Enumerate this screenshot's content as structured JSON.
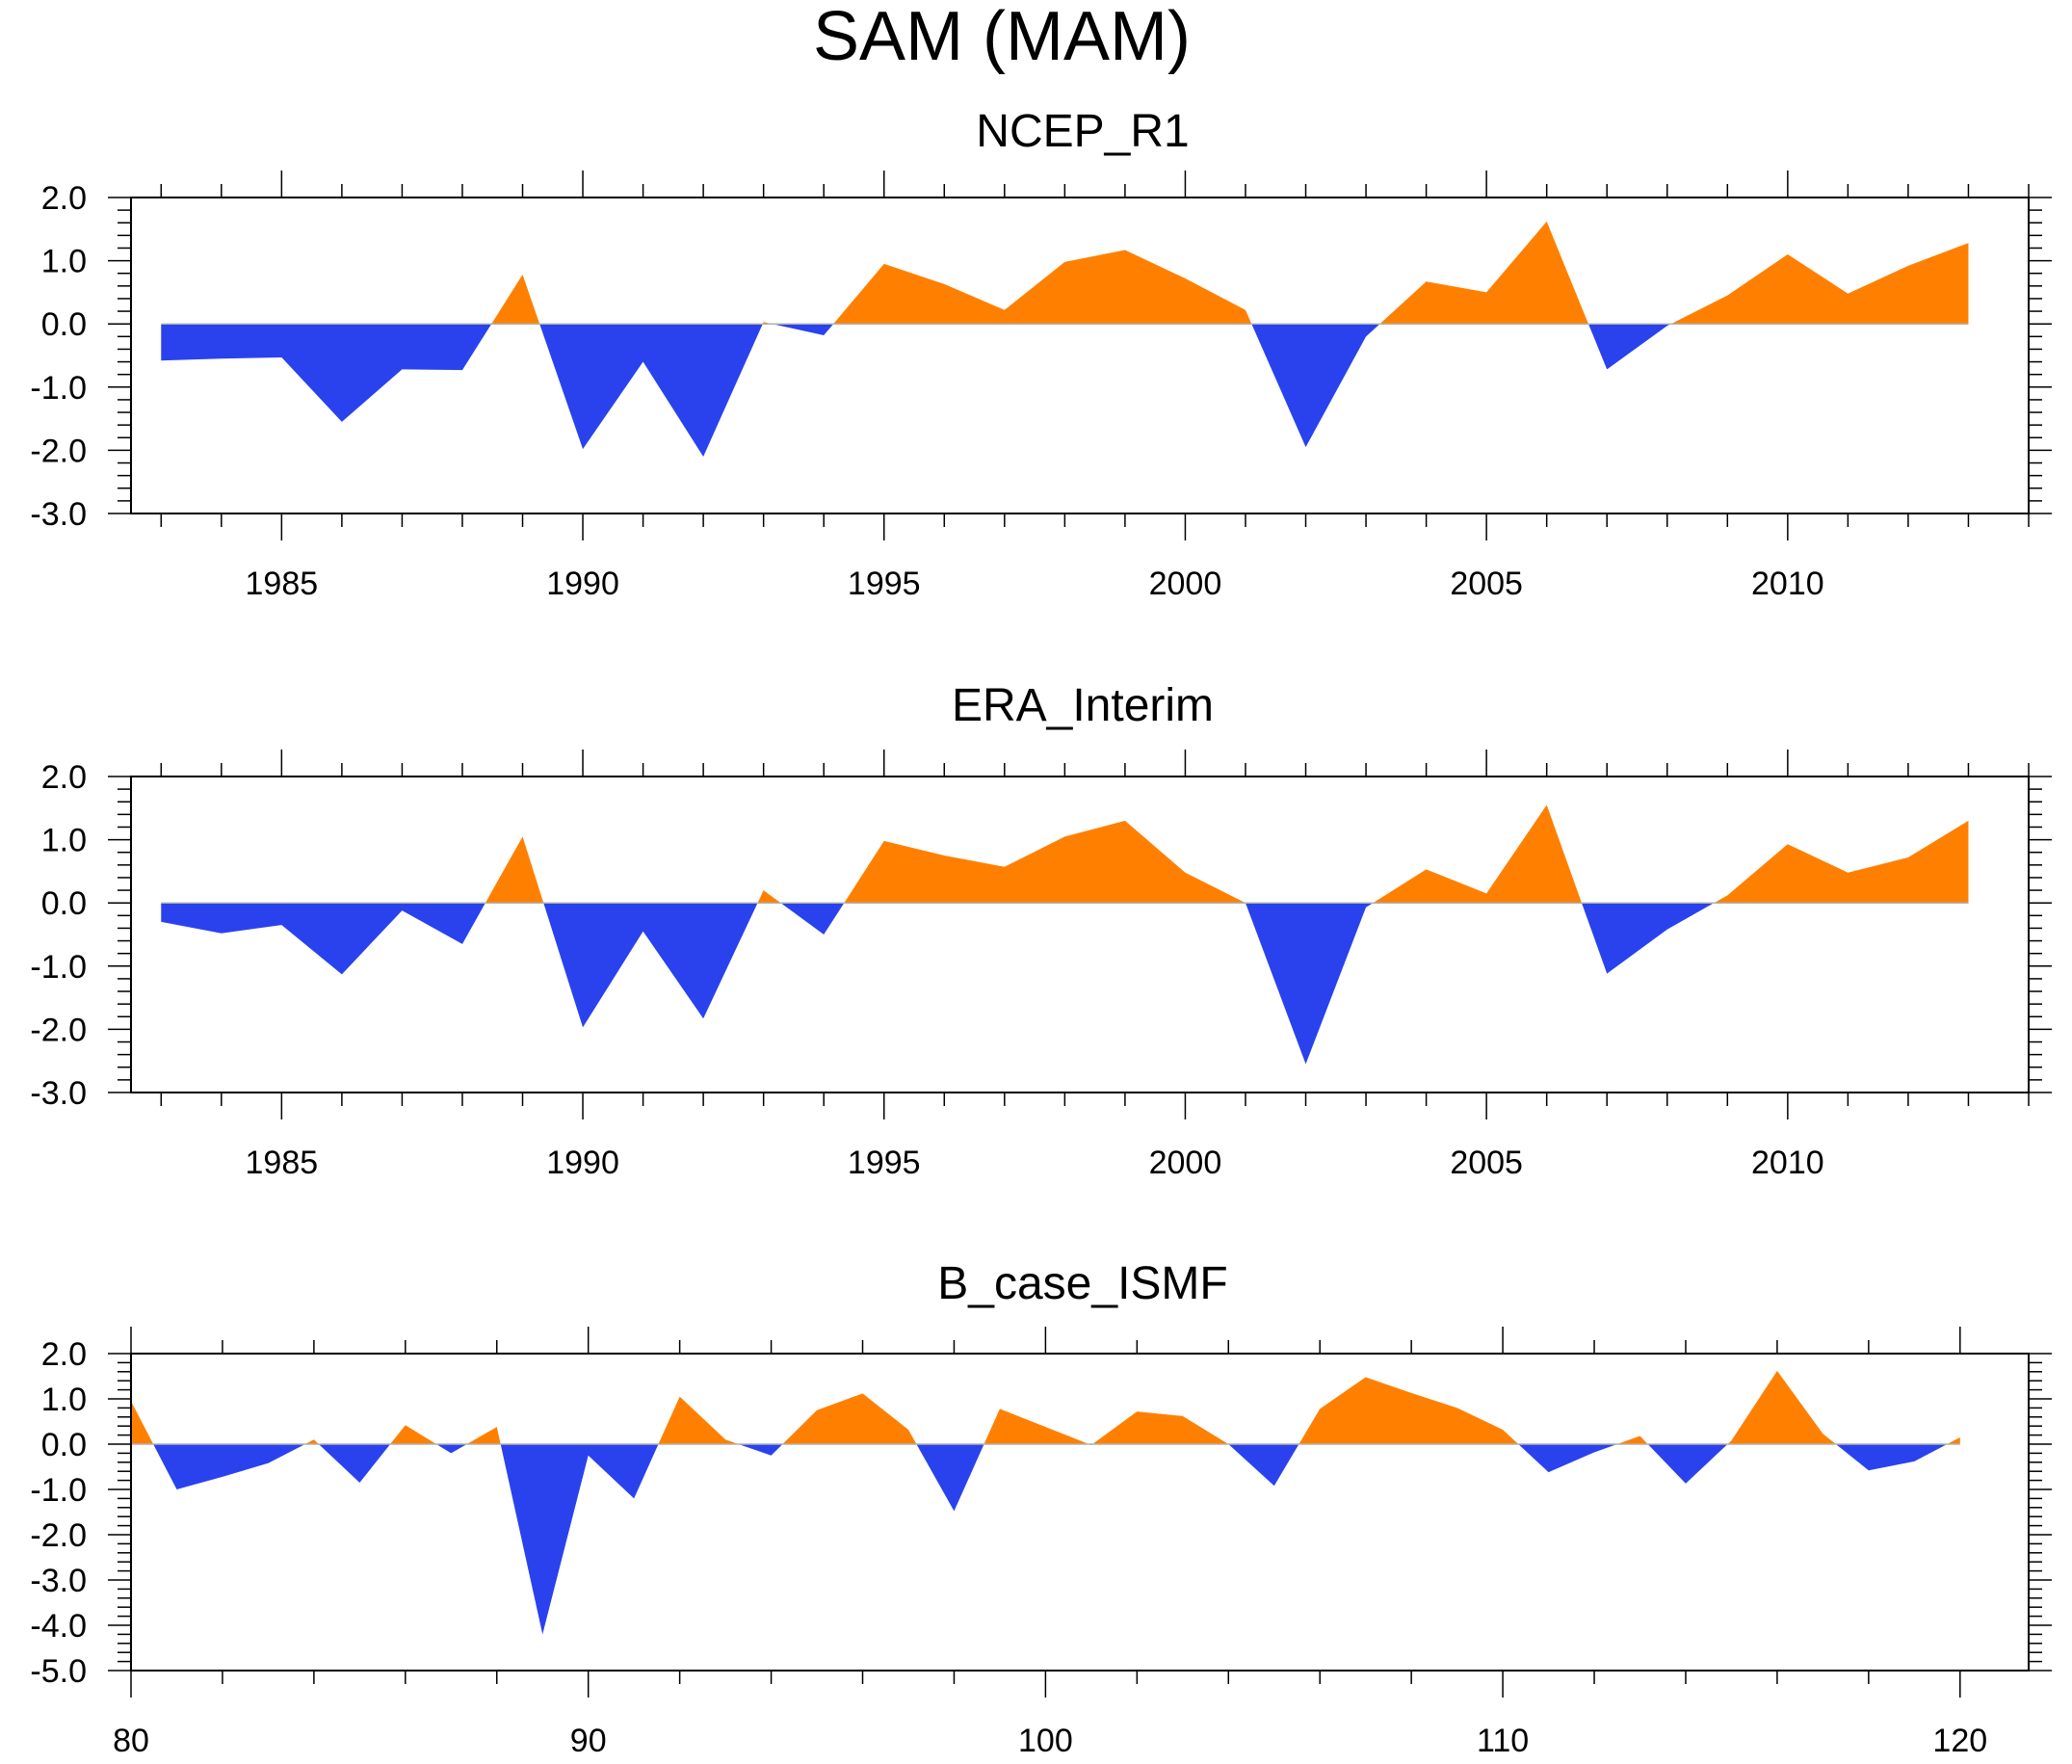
{
  "main_title": "SAM (MAM)",
  "colors": {
    "positive": "#ff8000",
    "negative": "#2a42ee",
    "zero_line": "#b0b0b0",
    "axis": "#000000"
  },
  "chart_data": [
    {
      "type": "area",
      "title": "NCEP_R1",
      "x": [
        1983,
        1984,
        1985,
        1986,
        1987,
        1988,
        1989,
        1990,
        1991,
        1992,
        1993,
        1994,
        1995,
        1996,
        1997,
        1998,
        1999,
        2000,
        2001,
        2002,
        2003,
        2004,
        2005,
        2006,
        2007,
        2008,
        2009,
        2010,
        2011,
        2012,
        2013
      ],
      "values": [
        -0.58,
        -0.55,
        -0.53,
        -1.55,
        -0.72,
        -0.73,
        0.78,
        -1.98,
        -0.6,
        -2.1,
        0.03,
        -0.18,
        0.95,
        0.63,
        0.22,
        0.98,
        1.17,
        0.72,
        0.22,
        -1.95,
        -0.2,
        0.67,
        0.5,
        1.62,
        -0.72,
        -0.03,
        0.45,
        1.1,
        0.48,
        0.92,
        1.28
      ],
      "xlim": [
        1982.5,
        2014
      ],
      "ylim": [
        -3,
        2
      ],
      "y_ticks": [
        2,
        1,
        0,
        -1,
        -2,
        -3
      ],
      "y_tick_labels": [
        "2.0",
        "1.0",
        "0.0",
        "-1.0",
        "-2.0",
        "-3.0"
      ],
      "x_major_ticks": [
        1985,
        1990,
        1995,
        2000,
        2005,
        2010
      ],
      "x_tick_labels": [
        "1985",
        "1990",
        "1995",
        "2000",
        "2005",
        "2010"
      ],
      "x_minor_step": 1,
      "y_minor_step": 0.2
    },
    {
      "type": "area",
      "title": "ERA_Interim",
      "x": [
        1983,
        1984,
        1985,
        1986,
        1987,
        1988,
        1989,
        1990,
        1991,
        1992,
        1993,
        1994,
        1995,
        1996,
        1997,
        1998,
        1999,
        2000,
        2001,
        2002,
        2003,
        2004,
        2005,
        2006,
        2007,
        2008,
        2009,
        2010,
        2011,
        2012,
        2013
      ],
      "values": [
        -0.3,
        -0.48,
        -0.35,
        -1.13,
        -0.12,
        -0.65,
        1.05,
        -1.97,
        -0.45,
        -1.83,
        0.2,
        -0.5,
        0.98,
        0.75,
        0.57,
        1.05,
        1.3,
        0.48,
        0.0,
        -2.55,
        -0.07,
        0.53,
        0.15,
        1.55,
        -1.12,
        -0.42,
        0.12,
        0.93,
        0.48,
        0.72,
        1.3
      ],
      "xlim": [
        1982.5,
        2014
      ],
      "ylim": [
        -3,
        2
      ],
      "y_ticks": [
        2,
        1,
        0,
        -1,
        -2,
        -3
      ],
      "y_tick_labels": [
        "2.0",
        "1.0",
        "0.0",
        "-1.0",
        "-2.0",
        "-3.0"
      ],
      "x_major_ticks": [
        1985,
        1990,
        1995,
        2000,
        2005,
        2010
      ],
      "x_tick_labels": [
        "1985",
        "1990",
        "1995",
        "2000",
        "2005",
        "2010"
      ],
      "x_minor_step": 1,
      "y_minor_step": 0.2
    },
    {
      "type": "area",
      "title": "B_case_ISMF",
      "x": [
        80,
        81,
        82,
        83,
        84,
        85,
        86,
        87,
        88,
        89,
        90,
        91,
        92,
        93,
        94,
        95,
        96,
        97,
        98,
        99,
        100,
        101,
        102,
        103,
        104,
        105,
        106,
        107,
        108,
        109,
        110,
        111,
        112,
        113,
        114,
        115,
        116,
        117,
        118,
        119,
        120
      ],
      "values": [
        0.95,
        -1.0,
        -0.72,
        -0.42,
        0.1,
        -0.85,
        0.42,
        -0.2,
        0.38,
        -4.2,
        -0.25,
        -1.2,
        1.05,
        0.1,
        -0.25,
        0.75,
        1.12,
        0.32,
        -1.48,
        0.78,
        0.38,
        -0.02,
        0.72,
        0.62,
        0.0,
        -0.92,
        0.78,
        1.48,
        1.13,
        0.8,
        0.32,
        -0.62,
        -0.18,
        0.18,
        -0.87,
        0.08,
        1.62,
        0.23,
        -0.58,
        -0.38,
        0.15
      ],
      "xlim": [
        80,
        121.5
      ],
      "ylim": [
        -5,
        2
      ],
      "y_ticks": [
        2,
        1,
        0,
        -1,
        -2,
        -3,
        -4,
        -5
      ],
      "y_tick_labels": [
        "2.0",
        "1.0",
        "0.0",
        "-1.0",
        "-2.0",
        "-3.0",
        "-4.0",
        "-5.0"
      ],
      "x_major_ticks": [
        80,
        90,
        100,
        110,
        120
      ],
      "x_tick_labels": [
        "80",
        "90",
        "100",
        "110",
        "120"
      ],
      "x_minor_step": 2,
      "y_minor_step": 0.2
    }
  ]
}
